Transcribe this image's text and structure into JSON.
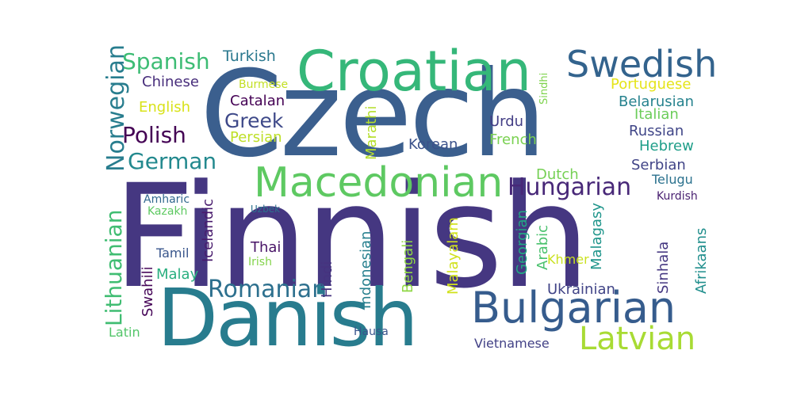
{
  "words": {
    "czech": {
      "text": "Czech",
      "color": "#3b5f8e"
    },
    "finnish": {
      "text": "Finnish",
      "color": "#453781"
    },
    "danish": {
      "text": "Danish",
      "color": "#287c8e"
    },
    "croatian": {
      "text": "Croatian",
      "color": "#35b779"
    },
    "swedish": {
      "text": "Swedish",
      "color": "#33638d"
    },
    "macedonian": {
      "text": "Macedonian",
      "color": "#5ec962"
    },
    "bulgarian": {
      "text": "Bulgarian",
      "color": "#365c8d"
    },
    "latvian": {
      "text": "Latvian",
      "color": "#a8db34"
    },
    "romanian": {
      "text": "Romanian",
      "color": "#2d708e"
    },
    "hungarian": {
      "text": "Hungarian",
      "color": "#482878"
    },
    "norwegian": {
      "text": "Norwegian",
      "color": "#287d8e"
    },
    "lithuanian": {
      "text": "Lithuanian",
      "color": "#40bd72"
    },
    "spanish": {
      "text": "Spanish",
      "color": "#3dbc74"
    },
    "polish": {
      "text": "Polish",
      "color": "#440154"
    },
    "german": {
      "text": "German",
      "color": "#23898e"
    },
    "greek": {
      "text": "Greek",
      "color": "#3e4989"
    },
    "turkish": {
      "text": "Turkish",
      "color": "#2a788e"
    },
    "chinese": {
      "text": "Chinese",
      "color": "#472d7b"
    },
    "english": {
      "text": "English",
      "color": "#d8e219"
    },
    "catalan": {
      "text": "Catalan",
      "color": "#440154"
    },
    "persian": {
      "text": "Persian",
      "color": "#bddf26"
    },
    "burmese": {
      "text": "Burmese",
      "color": "#c2df23"
    },
    "urdu": {
      "text": "Urdu",
      "color": "#433e85"
    },
    "korean": {
      "text": "Korean",
      "color": "#3b528b"
    },
    "french": {
      "text": "French",
      "color": "#7ad151"
    },
    "dutch": {
      "text": "Dutch",
      "color": "#75d054"
    },
    "portuguese": {
      "text": "Portuguese",
      "color": "#e5e419"
    },
    "belarusian": {
      "text": "Belarusian",
      "color": "#26828e"
    },
    "italian": {
      "text": "Italian",
      "color": "#6ccd5a"
    },
    "russian": {
      "text": "Russian",
      "color": "#404688"
    },
    "hebrew": {
      "text": "Hebrew",
      "color": "#1f9e89"
    },
    "serbian": {
      "text": "Serbian",
      "color": "#414487"
    },
    "telugu": {
      "text": "Telugu",
      "color": "#2c728e"
    },
    "kurdish": {
      "text": "Kurdish",
      "color": "#481f70"
    },
    "amharic": {
      "text": "Amharic",
      "color": "#31688e"
    },
    "kazakh": {
      "text": "Kazakh",
      "color": "#5ec962"
    },
    "uzbek": {
      "text": "Uzbek",
      "color": "#2c728e"
    },
    "icelandic": {
      "text": "Icelandic",
      "color": "#481b6d"
    },
    "thai": {
      "text": "Thai",
      "color": "#481467"
    },
    "irish": {
      "text": "Irish",
      "color": "#84d44b"
    },
    "tamil": {
      "text": "Tamil",
      "color": "#39568c"
    },
    "malay": {
      "text": "Malay",
      "color": "#29af7f"
    },
    "swahili": {
      "text": "Swahili",
      "color": "#450457"
    },
    "indonesian": {
      "text": "Indonesian",
      "color": "#277f8e"
    },
    "hindi": {
      "text": "Hindi",
      "color": "#46337f"
    },
    "bengali": {
      "text": "Bengali",
      "color": "#8fd744"
    },
    "marathi": {
      "text": "Marathi",
      "color": "#b5de2b"
    },
    "sindhi": {
      "text": "Sindhi",
      "color": "#7fd34e"
    },
    "malayalam": {
      "text": "Malayalam",
      "color": "#d0e11c"
    },
    "georgian": {
      "text": "Georgian",
      "color": "#22a884"
    },
    "arabic": {
      "text": "Arabic",
      "color": "#4ac16d"
    },
    "khmer": {
      "text": "Khmer",
      "color": "#cae11f"
    },
    "malagasy": {
      "text": "Malagasy",
      "color": "#1f958b"
    },
    "ukrainian": {
      "text": "Ukrainian",
      "color": "#414487"
    },
    "sinhala": {
      "text": "Sinhala",
      "color": "#453781"
    },
    "afrikaans": {
      "text": "Afrikaans",
      "color": "#218f8d"
    },
    "vietnamese": {
      "text": "Vietnamese",
      "color": "#424186"
    },
    "latin": {
      "text": "Latin",
      "color": "#52c569"
    },
    "hausa": {
      "text": "Hausa",
      "color": "#3a548c"
    }
  }
}
